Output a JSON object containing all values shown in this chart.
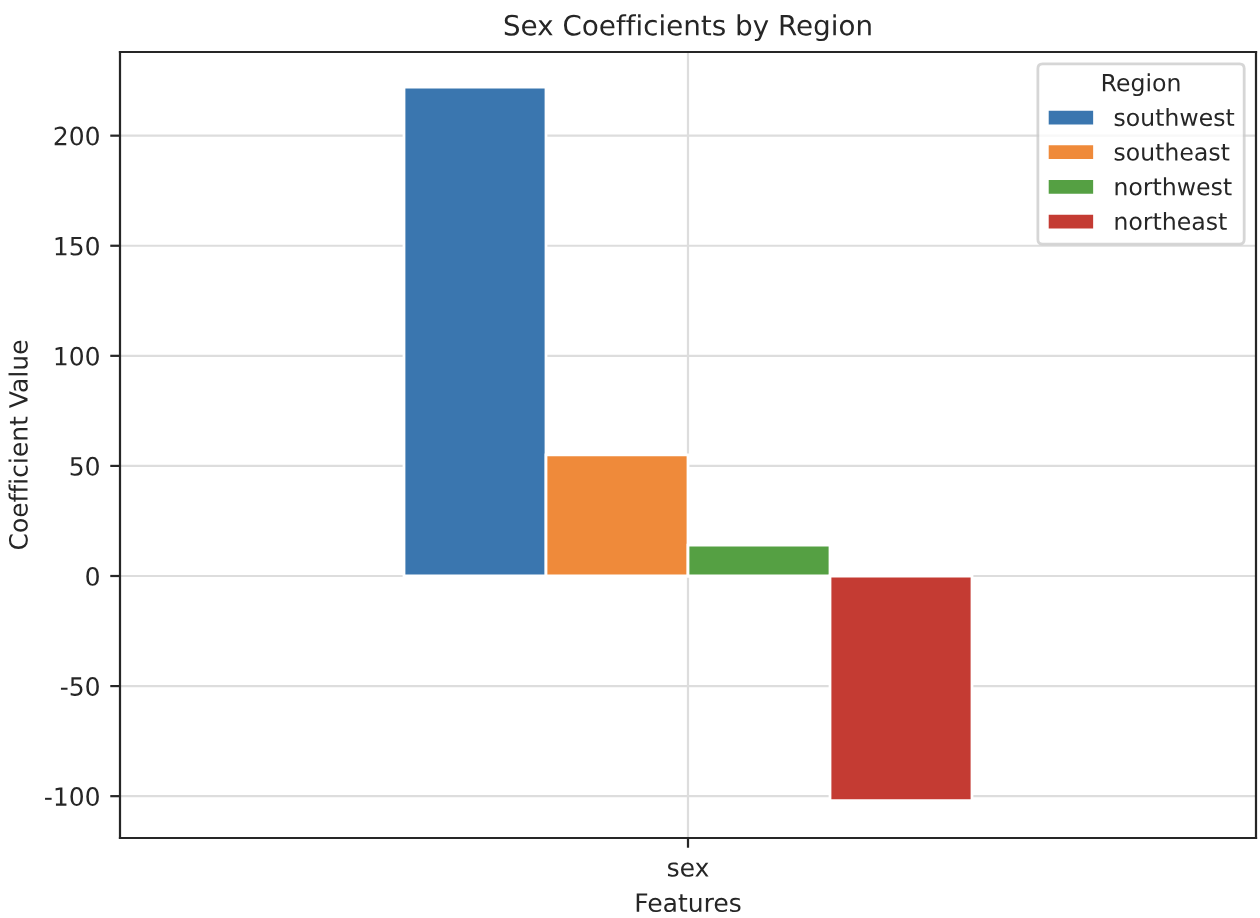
{
  "chart_data": {
    "type": "bar",
    "title": "Sex Coefficients by Region",
    "xlabel": "Features",
    "ylabel": "Coefficient Value",
    "legend_title": "Region",
    "categories": [
      "sex"
    ],
    "series": [
      {
        "name": "southwest",
        "color": "#3a76af",
        "values": [
          222
        ]
      },
      {
        "name": "southeast",
        "color": "#ef8a3a",
        "values": [
          55
        ]
      },
      {
        "name": "northwest",
        "color": "#55a043",
        "values": [
          14
        ]
      },
      {
        "name": "northeast",
        "color": "#c43b33",
        "values": [
          -102
        ]
      }
    ],
    "ylim": [
      -119,
      238
    ],
    "yticks": [
      -100,
      -50,
      0,
      50,
      100,
      150,
      200
    ],
    "grid": true,
    "legend": "top right"
  }
}
